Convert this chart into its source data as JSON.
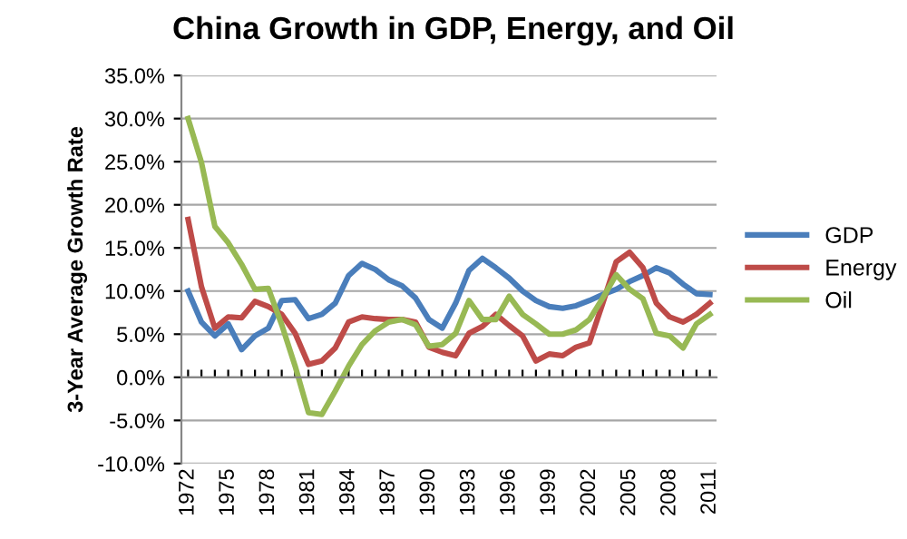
{
  "chart_data": {
    "type": "line",
    "title": "China Growth in GDP, Energy, and Oil",
    "ylabel": "3-Year Average Growth Rate",
    "categories": [
      "1972",
      null,
      null,
      "1975",
      null,
      null,
      "1978",
      null,
      null,
      "1981",
      null,
      null,
      "1984",
      null,
      null,
      "1987",
      null,
      null,
      "1990",
      null,
      null,
      "1993",
      null,
      null,
      "1996",
      null,
      null,
      "1999",
      null,
      null,
      "2002",
      null,
      null,
      "2005",
      null,
      null,
      "2008",
      null,
      null,
      "2011"
    ],
    "series": [
      {
        "name": "GDP",
        "color": "#4a7ebb",
        "values": [
          10.0,
          6.4,
          4.8,
          6.2,
          3.2,
          4.8,
          5.7,
          8.9,
          9.0,
          6.8,
          7.3,
          8.6,
          11.8,
          13.2,
          12.5,
          11.3,
          10.6,
          9.2,
          6.7,
          5.7,
          8.6,
          12.4,
          13.8,
          12.7,
          11.5,
          10.0,
          8.9,
          8.2,
          8.0,
          8.3,
          8.9,
          9.6,
          10.2,
          11.1,
          11.8,
          12.7,
          12.1,
          10.8,
          9.7,
          9.6
        ]
      },
      {
        "name": "Energy",
        "color": "#be4b48",
        "values": [
          18.3,
          10.5,
          5.7,
          7.0,
          6.9,
          8.8,
          8.2,
          7.3,
          5.1,
          1.5,
          1.9,
          3.4,
          6.4,
          7.0,
          6.8,
          6.7,
          6.7,
          6.4,
          3.5,
          2.9,
          2.5,
          5.1,
          5.9,
          7.3,
          6.0,
          4.8,
          1.9,
          2.7,
          2.5,
          3.5,
          4.0,
          8.6,
          13.4,
          14.5,
          12.7,
          8.6,
          7.0,
          6.4,
          7.3,
          8.6
        ]
      },
      {
        "name": "Oil",
        "color": "#98b954",
        "values": [
          30.0,
          24.9,
          17.5,
          15.6,
          13.1,
          10.2,
          10.3,
          6.1,
          1.3,
          -4.1,
          -4.3,
          -1.6,
          1.3,
          3.8,
          5.4,
          6.4,
          6.7,
          6.1,
          3.6,
          3.8,
          5.1,
          8.9,
          6.7,
          6.7,
          9.4,
          7.3,
          6.2,
          5.0,
          5.0,
          5.5,
          6.7,
          9.2,
          11.9,
          10.2,
          9.1,
          5.1,
          4.8,
          3.4,
          6.2,
          7.3
        ]
      }
    ],
    "ylim": [
      -10,
      35
    ],
    "yticks": [
      {
        "value": -10,
        "label": "-10.0%"
      },
      {
        "value": -5,
        "label": "-5.0%"
      },
      {
        "value": 0,
        "label": "0.0%"
      },
      {
        "value": 5,
        "label": "5.0%"
      },
      {
        "value": 10,
        "label": "10.0%"
      },
      {
        "value": 15,
        "label": "15.0%"
      },
      {
        "value": 20,
        "label": "20.0%"
      },
      {
        "value": 25,
        "label": "25.0%"
      },
      {
        "value": 30,
        "label": "30.0%"
      },
      {
        "value": 35,
        "label": "35.0%"
      }
    ],
    "grid": "y",
    "legend": "right",
    "marker": "none",
    "line_style": "solid"
  }
}
